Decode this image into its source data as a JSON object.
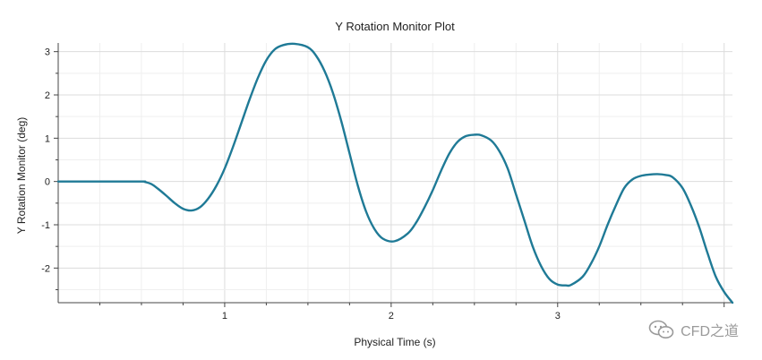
{
  "watermark": {
    "text": "CFD之道",
    "icon": "wechat-icon"
  },
  "chart_data": {
    "type": "line",
    "title": "Y Rotation Monitor Plot",
    "xlabel": "Physical Time (s)",
    "ylabel": "Y Rotation Monitor (deg)",
    "xlim": [
      0,
      4.05
    ],
    "ylim": [
      -2.8,
      3.2
    ],
    "x_ticks": [
      1,
      2,
      3
    ],
    "y_ticks": [
      -2,
      -1,
      0,
      1,
      2,
      3
    ],
    "grid": true,
    "line_color": "#1f7a96",
    "series": [
      {
        "name": "",
        "x": [
          0,
          0.25,
          0.5,
          0.52,
          0.56,
          0.6,
          0.65,
          0.7,
          0.75,
          0.8,
          0.85,
          0.9,
          0.95,
          1.0,
          1.05,
          1.1,
          1.15,
          1.2,
          1.25,
          1.3,
          1.35,
          1.42,
          1.5,
          1.55,
          1.6,
          1.65,
          1.7,
          1.75,
          1.8,
          1.85,
          1.9,
          1.95,
          2.02,
          2.1,
          2.15,
          2.2,
          2.25,
          2.3,
          2.35,
          2.4,
          2.45,
          2.5,
          2.54,
          2.6,
          2.65,
          2.7,
          2.75,
          2.8,
          2.85,
          2.9,
          2.95,
          3.0,
          3.05,
          3.08,
          3.15,
          3.2,
          3.25,
          3.3,
          3.35,
          3.4,
          3.45,
          3.5,
          3.55,
          3.6,
          3.65,
          3.69,
          3.75,
          3.8,
          3.85,
          3.9,
          3.95,
          4.0,
          4.05
        ],
        "y": [
          0,
          0,
          0,
          -0.01,
          -0.06,
          -0.17,
          -0.33,
          -0.5,
          -0.63,
          -0.67,
          -0.6,
          -0.4,
          -0.1,
          0.3,
          0.8,
          1.35,
          1.9,
          2.4,
          2.8,
          3.05,
          3.15,
          3.18,
          3.1,
          2.9,
          2.55,
          2.05,
          1.4,
          0.65,
          -0.1,
          -0.7,
          -1.1,
          -1.32,
          -1.38,
          -1.2,
          -0.95,
          -0.6,
          -0.2,
          0.25,
          0.65,
          0.92,
          1.05,
          1.08,
          1.07,
          0.95,
          0.7,
          0.3,
          -0.3,
          -0.9,
          -1.5,
          -1.95,
          -2.25,
          -2.38,
          -2.4,
          -2.39,
          -2.2,
          -1.9,
          -1.5,
          -1.0,
          -0.55,
          -0.15,
          0.05,
          0.13,
          0.16,
          0.17,
          0.15,
          0.1,
          -0.15,
          -0.55,
          -1.05,
          -1.65,
          -2.2,
          -2.55,
          -2.8
        ]
      }
    ]
  }
}
